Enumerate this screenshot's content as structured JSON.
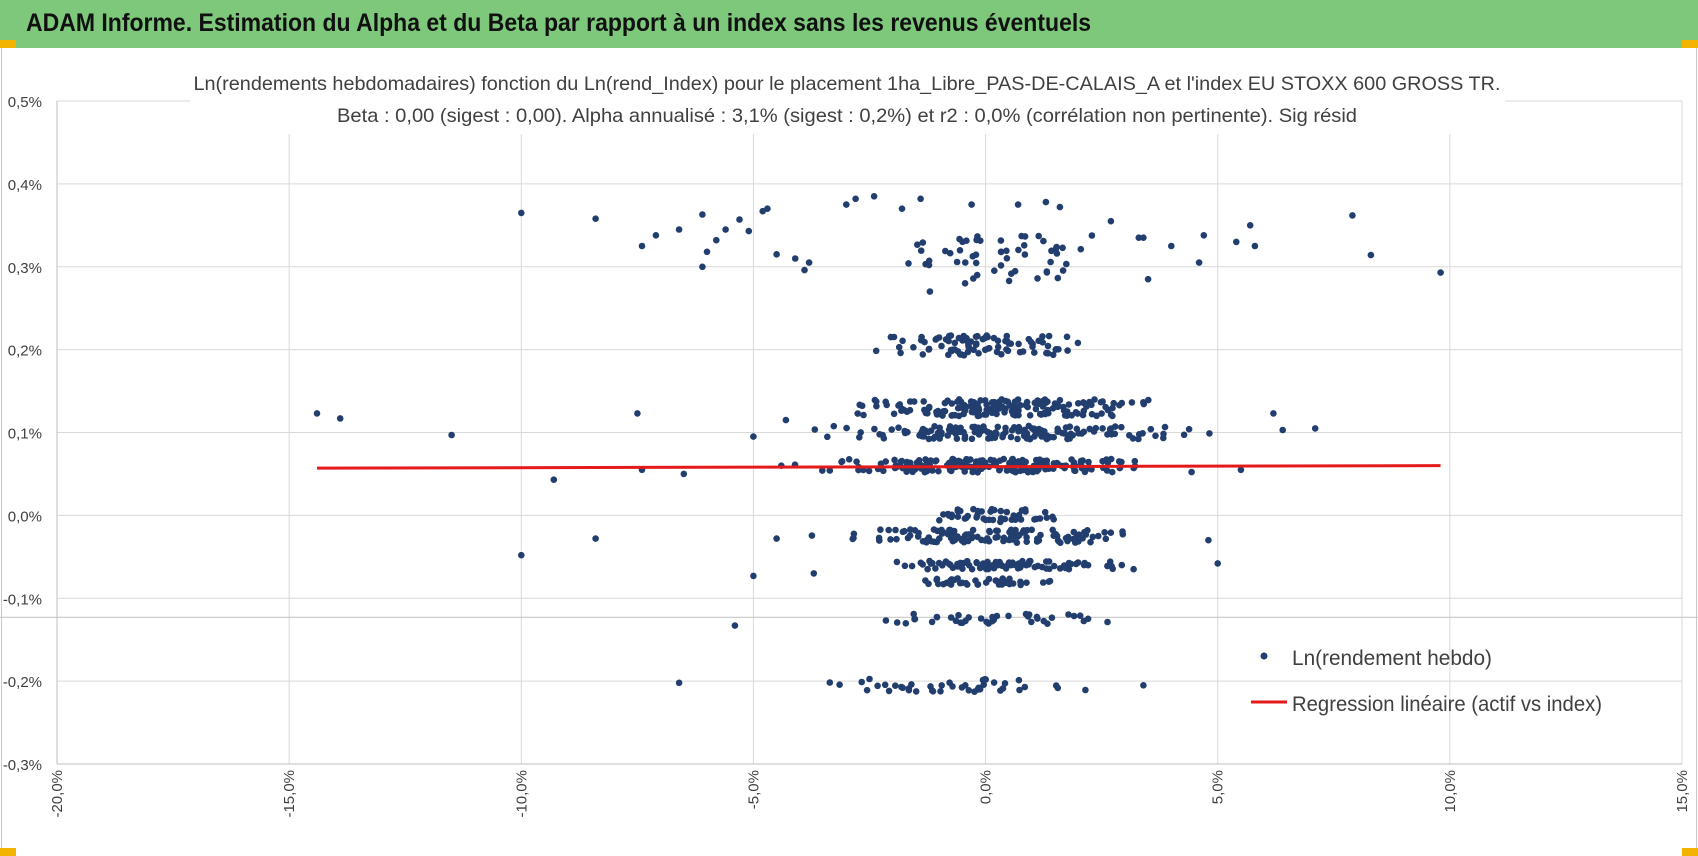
{
  "banner": {
    "title": "ADAM Informe. Estimation du Alpha et du Beta par rapport à un index sans les revenus éventuels",
    "color": "#7dc87a"
  },
  "chart_data": {
    "type": "scatter",
    "title_line1": "Ln(rendements hebdomadaires) fonction du Ln(rend_Index) pour le placement 1ha_Libre_PAS-DE-CALAIS_A et l'index EU STOXX 600 GROSS TR.",
    "title_line2": "Beta : 0,00 (sigest : 0,00). Alpha annualisé : 3,1% (sigest : 0,2%) et r2 : 0,0% (corrélation non pertinente). Sig résid",
    "xlim": [
      -20,
      15
    ],
    "ylim": [
      -0.3,
      0.5
    ],
    "x_ticks": [
      "-20,0%",
      "-15,0%",
      "-10,0%",
      "-5,0%",
      "0,0%",
      "5,0%",
      "10,0%",
      "15,0%"
    ],
    "x_tick_values": [
      -20,
      -15,
      -10,
      -5,
      0,
      5,
      10,
      15
    ],
    "y_ticks": [
      "0,5%",
      "0,4%",
      "0,3%",
      "0,2%",
      "0,1%",
      "0,0%",
      "-0,1%",
      "-0,2%",
      "-0,3%"
    ],
    "y_tick_values": [
      0.5,
      0.4,
      0.3,
      0.2,
      0.1,
      0.0,
      -0.1,
      -0.2,
      -0.3
    ],
    "sig_resid_line": -0.123,
    "legend": [
      {
        "label": "Ln(rendement hebdo)",
        "kind": "marker",
        "color": "#223e6e"
      },
      {
        "label": "Regression linéaire (actif vs index)",
        "kind": "line",
        "color": "#e41a1a"
      }
    ],
    "regression": {
      "x": [
        -14.4,
        9.8
      ],
      "y": [
        0.057,
        0.06
      ],
      "color": "#e41a1a"
    },
    "outliers": [
      [
        -14.4,
        0.123
      ],
      [
        -13.9,
        0.117
      ],
      [
        -11.5,
        0.097
      ],
      [
        -10.0,
        0.365
      ],
      [
        -10.0,
        -0.048
      ],
      [
        -9.3,
        0.043
      ],
      [
        -8.4,
        0.358
      ],
      [
        -8.4,
        -0.028
      ],
      [
        -7.5,
        0.123
      ],
      [
        -7.4,
        0.325
      ],
      [
        -7.4,
        0.055
      ],
      [
        -7.1,
        0.338
      ],
      [
        -6.6,
        0.345
      ],
      [
        -6.6,
        -0.202
      ],
      [
        -6.5,
        0.05
      ],
      [
        -6.1,
        0.363
      ],
      [
        -6.1,
        0.3
      ],
      [
        -6.0,
        0.318
      ],
      [
        -5.8,
        0.332
      ],
      [
        -5.6,
        0.345
      ],
      [
        -5.4,
        -0.133
      ],
      [
        -5.3,
        0.357
      ],
      [
        -5.1,
        0.343
      ],
      [
        -5.0,
        0.095
      ],
      [
        -5.0,
        -0.073
      ],
      [
        -4.8,
        0.367
      ],
      [
        -4.7,
        0.37
      ],
      [
        -4.5,
        0.315
      ],
      [
        -4.5,
        -0.028
      ],
      [
        -4.4,
        0.06
      ],
      [
        -4.3,
        0.115
      ],
      [
        -4.1,
        0.31
      ],
      [
        -3.9,
        0.296
      ],
      [
        -3.8,
        0.305
      ],
      [
        -3.7,
        -0.07
      ],
      [
        -3.0,
        0.375
      ],
      [
        -2.8,
        0.382
      ],
      [
        -2.4,
        0.385
      ],
      [
        -1.8,
        0.37
      ],
      [
        -1.4,
        0.382
      ],
      [
        -1.2,
        0.27
      ],
      [
        -0.3,
        0.375
      ],
      [
        0.7,
        0.375
      ],
      [
        1.3,
        0.378
      ],
      [
        1.6,
        0.372
      ],
      [
        2.7,
        0.355
      ],
      [
        3.3,
        0.335
      ],
      [
        3.4,
        0.335
      ],
      [
        3.4,
        -0.205
      ],
      [
        3.5,
        0.285
      ],
      [
        4.0,
        0.325
      ],
      [
        4.6,
        0.305
      ],
      [
        4.7,
        0.338
      ],
      [
        4.8,
        -0.03
      ],
      [
        5.0,
        -0.058
      ],
      [
        5.4,
        0.33
      ],
      [
        5.5,
        0.055
      ],
      [
        5.7,
        0.35
      ],
      [
        5.8,
        0.325
      ],
      [
        6.2,
        0.123
      ],
      [
        6.4,
        0.103
      ],
      [
        7.1,
        0.105
      ],
      [
        7.9,
        0.362
      ],
      [
        8.3,
        0.314
      ],
      [
        9.8,
        0.293
      ]
    ],
    "clusters": [
      {
        "y": 0.06,
        "x_min": -4.0,
        "x_max": 4.2,
        "spread": 0.008,
        "count": 200
      },
      {
        "y": 0.1,
        "x_min": -3.8,
        "x_max": 4.8,
        "spread": 0.008,
        "count": 150
      },
      {
        "y": 0.13,
        "x_min": -3.5,
        "x_max": 4.3,
        "spread": 0.01,
        "count": 170
      },
      {
        "y": -0.025,
        "x_min": -4.0,
        "x_max": 3.6,
        "spread": 0.008,
        "count": 120
      },
      {
        "y": -0.06,
        "x_min": -2.8,
        "x_max": 3.3,
        "spread": 0.005,
        "count": 90
      },
      {
        "y": -0.08,
        "x_min": -2.0,
        "x_max": 1.9,
        "spread": 0.004,
        "count": 40
      },
      {
        "y": 0.0,
        "x_min": -1.4,
        "x_max": 1.8,
        "spread": 0.008,
        "count": 45
      },
      {
        "y": 0.205,
        "x_min": -2.8,
        "x_max": 2.6,
        "spread": 0.012,
        "count": 90
      },
      {
        "y": 0.31,
        "x_min": -2.2,
        "x_max": 3.3,
        "spread": 0.03,
        "count": 55
      },
      {
        "y": -0.125,
        "x_min": -2.3,
        "x_max": 2.8,
        "spread": 0.006,
        "count": 40
      },
      {
        "y": -0.205,
        "x_min": -4.0,
        "x_max": 2.3,
        "spread": 0.008,
        "count": 45
      }
    ]
  }
}
